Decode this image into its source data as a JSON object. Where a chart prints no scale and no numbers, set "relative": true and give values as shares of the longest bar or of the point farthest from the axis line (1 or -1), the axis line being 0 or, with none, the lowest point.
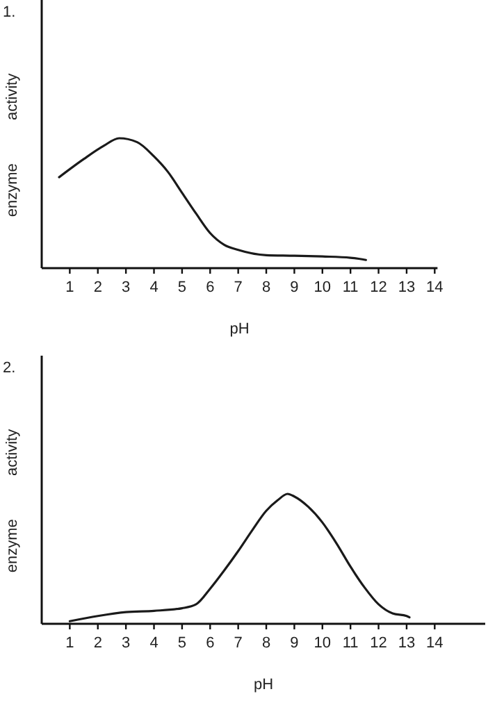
{
  "chart_data": [
    {
      "type": "line",
      "title": "1.",
      "xlabel": "pH",
      "ylabel": "enzyme activity",
      "relative": true,
      "xlim": [
        0,
        14.1
      ],
      "xticks": [
        1,
        2,
        3,
        4,
        5,
        6,
        7,
        8,
        9,
        10,
        11,
        12,
        13,
        14
      ],
      "series": [
        {
          "color": "#1a1a1a",
          "x": [
            0.62,
            1.5,
            2.2,
            2.76,
            3.4,
            4,
            4.5,
            5,
            5.5,
            6,
            6.5,
            7,
            8,
            9,
            10,
            11,
            11.55
          ],
          "values": [
            0.7,
            0.84,
            0.94,
            1,
            0.97,
            0.86,
            0.74,
            0.58,
            0.42,
            0.27,
            0.18,
            0.14,
            0.1,
            0.096,
            0.09,
            0.08,
            0.063
          ]
        }
      ]
    },
    {
      "type": "line",
      "title": "2.",
      "xlabel": "pH",
      "ylabel": "enzyme activity",
      "relative": true,
      "xlim": [
        0,
        15.8
      ],
      "xticks": [
        1,
        2,
        3,
        4,
        5,
        6,
        7,
        8,
        9,
        10,
        11,
        12,
        13,
        14
      ],
      "series": [
        {
          "color": "#1a1a1a",
          "x": [
            1,
            2,
            3,
            4,
            5,
            5.5,
            6,
            6.5,
            7,
            7.5,
            8,
            8.4,
            8.76,
            9,
            9.5,
            10,
            10.5,
            11,
            11.5,
            12,
            12.5,
            13,
            13.1
          ],
          "values": [
            0.02,
            0.06,
            0.09,
            0.1,
            0.12,
            0.15,
            0.27,
            0.41,
            0.56,
            0.72,
            0.87,
            0.95,
            1,
            0.98,
            0.9,
            0.78,
            0.62,
            0.44,
            0.28,
            0.15,
            0.08,
            0.06,
            0.05
          ]
        }
      ]
    }
  ]
}
